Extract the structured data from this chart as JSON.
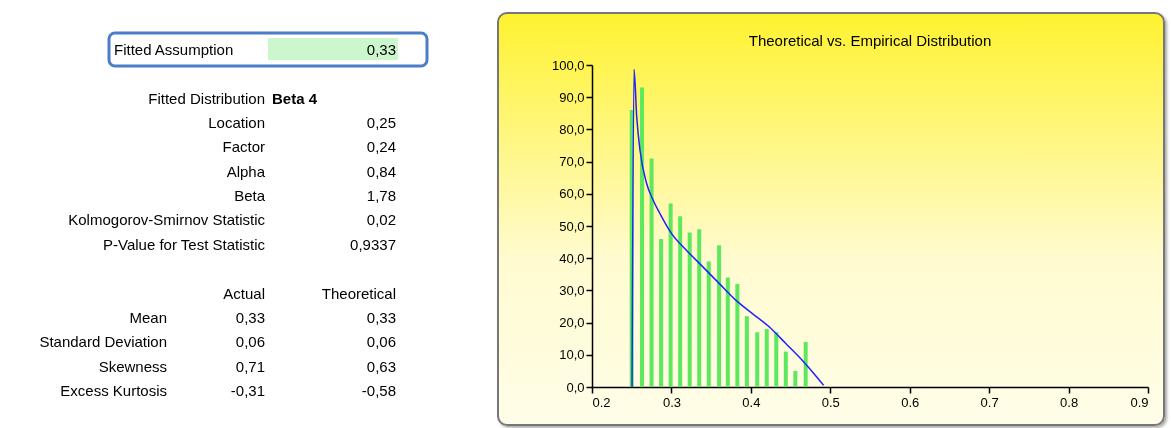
{
  "chart_data": [
    {
      "type": "other",
      "annotations": [
        "Fitted Assumption",
        "0,33",
        "Fitted Distribution",
        "Beta 4",
        "Location",
        "0,25",
        "Factor",
        "0,24",
        "Alpha",
        "0,84",
        "Beta",
        "1,78",
        "Kolmogorov-Smirnov Statistic",
        "0,02",
        "P-Value for Test Statistic",
        "0,9337",
        "Actual",
        "Theoretical",
        "Mean",
        "0,33",
        "0,33",
        "Standard Deviation",
        "0,06",
        "0,06",
        "Skewness",
        "0,71",
        "0,63",
        "Excess Kurtosis",
        "-0,31",
        "-0,58"
      ]
    },
    {
      "type": "bar",
      "title": "Theoretical vs. Empirical Distribution",
      "xlim": [
        0.2,
        0.9
      ],
      "xticks": [
        0.2,
        0.3,
        0.4,
        0.5,
        0.6,
        0.7,
        0.8,
        0.9
      ],
      "ylim": [
        0,
        100
      ],
      "yticks": [
        {
          "value": 0,
          "label": "0,0"
        },
        {
          "value": 10,
          "label": "10,0"
        },
        {
          "value": 20,
          "label": "20,0"
        },
        {
          "value": 30,
          "label": "30,0"
        },
        {
          "value": 40,
          "label": "40,0"
        },
        {
          "value": 50,
          "label": "50,0"
        },
        {
          "value": 60,
          "label": "60,0"
        },
        {
          "value": 70,
          "label": "70,0"
        },
        {
          "value": 80,
          "label": "80,0"
        },
        {
          "value": 90,
          "label": "90,0"
        },
        {
          "value": 100,
          "label": "100,0"
        }
      ],
      "grid": false,
      "series": [
        {
          "type": "bar",
          "color": "#5ee85e",
          "x": [
            0.25,
            0.263,
            0.275,
            0.287,
            0.299,
            0.311,
            0.323,
            0.335,
            0.347,
            0.36,
            0.371,
            0.383,
            0.395,
            0.408,
            0.42,
            0.432,
            0.444,
            0.456,
            0.469
          ],
          "values": [
            86,
            93,
            71,
            46,
            57,
            53,
            48,
            49,
            39,
            44,
            34,
            32,
            22,
            17,
            18,
            17,
            11,
            5,
            14
          ]
        },
        {
          "type": "line",
          "color": "#2222ff",
          "x": [
            0.2504,
            0.2529,
            0.2563,
            0.2604,
            0.2688,
            0.277,
            0.2854,
            0.3,
            0.3188,
            0.3396,
            0.3604,
            0.3813,
            0.402,
            0.423,
            0.444,
            0.4646,
            0.4813,
            0.4917
          ],
          "values": [
            0,
            98.7,
            83.9,
            73.6,
            63.2,
            58,
            53.9,
            47.7,
            42.5,
            37.3,
            32.1,
            26.9,
            22.8,
            18.7,
            13.5,
            8.3,
            3.6,
            0.5
          ]
        }
      ]
    }
  ]
}
